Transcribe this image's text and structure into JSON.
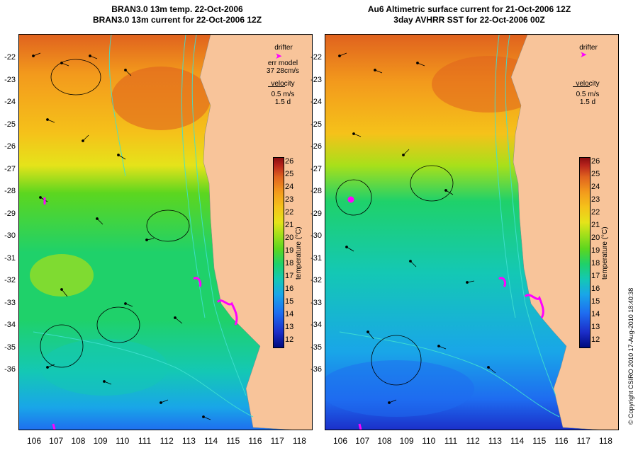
{
  "titles": {
    "left_line1": "BRAN3.0 13m temp. 22-Oct-2006",
    "left_line2": "BRAN3.0 13m current for 22-Oct-2006 12Z",
    "right_line1": "Au6 Altimetric surface current for 21-Oct-2006 12Z",
    "right_line2": "3day AVHRR SST for 22-Oct-2006 00Z"
  },
  "axes": {
    "lat_labels": [
      "-22",
      "-23",
      "-24",
      "-25",
      "-26",
      "-27",
      "-28",
      "-29",
      "-30",
      "-31",
      "-32",
      "-33",
      "-34",
      "-35",
      "-36"
    ],
    "lon_labels": [
      "106",
      "107",
      "108",
      "109",
      "110",
      "111",
      "112",
      "113",
      "114",
      "115",
      "116",
      "117",
      "118"
    ]
  },
  "legend_left": {
    "drifter": "drifter",
    "err_model": "err model",
    "err_value": "37 28cm/s",
    "velocity": "velocity",
    "velocity_value": "0.5 m/s",
    "days": "1.5 d"
  },
  "legend_right": {
    "drifter": "drifter",
    "velocity": "velocity",
    "velocity_value": "0.5 m/s",
    "days": "1.5 d"
  },
  "colorbar": {
    "label": "temperature (°C)",
    "ticks": [
      "26",
      "25",
      "24",
      "23",
      "22",
      "21",
      "20",
      "19",
      "18",
      "17",
      "16",
      "15",
      "14",
      "13",
      "12"
    ]
  },
  "copyright": "© Copyright CSIRO 2010  17-Aug-2010 18:40:38",
  "colors": {
    "land": "#f8c49a",
    "drifter": "#ff00ff",
    "contour": "#40e0d0"
  }
}
